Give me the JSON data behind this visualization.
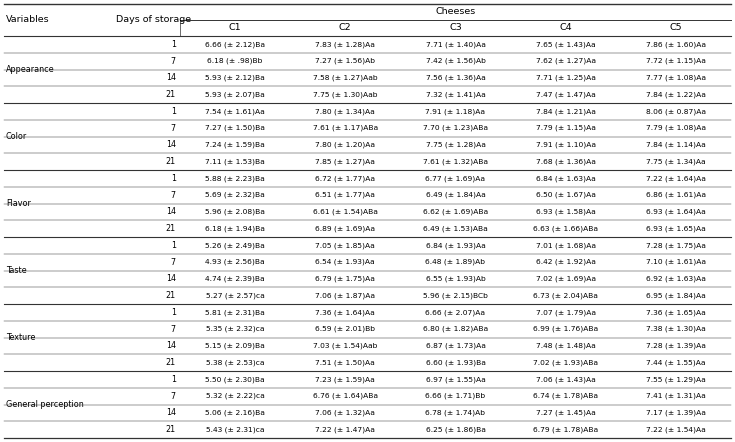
{
  "header_main": "Cheeses",
  "col_headers": [
    "C1",
    "C2",
    "C3",
    "C4",
    "C5"
  ],
  "row_groups": [
    {
      "variable": "Appearance",
      "days": [
        "1",
        "7",
        "14",
        "21"
      ],
      "values": [
        [
          "6.66 (± 2.12)Ba",
          "7.83 (± 1.28)Aa",
          "7.71 (± 1.40)Aa",
          "7.65 (± 1.43)Aa",
          "7.86 (± 1.60)Aa"
        ],
        [
          "6.18 (± .98)Bb",
          "7.27 (± 1.56)Ab",
          "7.42 (± 1.56)Ab",
          "7.62 (± 1.27)Aa",
          "7.72 (± 1.15)Aa"
        ],
        [
          "5.93 (± 2.12)Ba",
          "7.58 (± 1.27)Aab",
          "7.56 (± 1.36)Aa",
          "7.71 (± 1.25)Aa",
          "7.77 (± 1.08)Aa"
        ],
        [
          "5.93 (± 2.07)Ba",
          "7.75 (± 1.30)Aab",
          "7.32 (± 1.41)Aa",
          "7.47 (± 1.47)Aa",
          "7.84 (± 1.22)Aa"
        ]
      ]
    },
    {
      "variable": "Color",
      "days": [
        "1",
        "7",
        "14",
        "21"
      ],
      "values": [
        [
          "7.54 (± 1.61)Aa",
          "7.80 (± 1.34)Aa",
          "7.91 (± 1.18)Aa",
          "7.84 (± 1.21)Aa",
          "8.06 (± 0.87)Aa"
        ],
        [
          "7.27 (± 1.50)Ba",
          "7.61 (± 1.17)ABa",
          "7.70 (± 1.23)ABa",
          "7.79 (± 1.15)Aa",
          "7.79 (± 1.08)Aa"
        ],
        [
          "7.24 (± 1.59)Ba",
          "7.80 (± 1.20)Aa",
          "7.75 (± 1.28)Aa",
          "7.91 (± 1.10)Aa",
          "7.84 (± 1.14)Aa"
        ],
        [
          "7.11 (± 1.53)Ba",
          "7.85 (± 1.27)Aa",
          "7.61 (± 1.32)ABa",
          "7.68 (± 1.36)Aa",
          "7.75 (± 1.34)Aa"
        ]
      ]
    },
    {
      "variable": "Flavor",
      "days": [
        "1",
        "7",
        "14",
        "21"
      ],
      "values": [
        [
          "5.88 (± 2.23)Ba",
          "6.72 (± 1.77)Aa",
          "6.77 (± 1.69)Aa",
          "6.84 (± 1.63)Aa",
          "7.22 (± 1.64)Aa"
        ],
        [
          "5.69 (± 2.32)Ba",
          "6.51 (± 1.77)Aa",
          "6.49 (± 1.84)Aa",
          "6.50 (± 1.67)Aa",
          "6.86 (± 1.61)Aa"
        ],
        [
          "5.96 (± 2.08)Ba",
          "6.61 (± 1.54)ABa",
          "6.62 (± 1.69)ABa",
          "6.93 (± 1.58)Aa",
          "6.93 (± 1.64)Aa"
        ],
        [
          "6.18 (± 1.94)Ba",
          "6.89 (± 1.69)Aa",
          "6.49 (± 1.53)ABa",
          "6.63 (± 1.66)ABa",
          "6.93 (± 1.65)Aa"
        ]
      ]
    },
    {
      "variable": "Taste",
      "days": [
        "1",
        "7",
        "14",
        "21"
      ],
      "values": [
        [
          "5.26 (± 2.49)Ba",
          "7.05 (± 1.85)Aa",
          "6.84 (± 1.93)Aa",
          "7.01 (± 1.68)Aa",
          "7.28 (± 1.75)Aa"
        ],
        [
          "4.93 (± 2.56)Ba",
          "6.54 (± 1.93)Aa",
          "6.48 (± 1.89)Ab",
          "6.42 (± 1.92)Aa",
          "7.10 (± 1.61)Aa"
        ],
        [
          "4.74 (± 2.39)Ba",
          "6.79 (± 1.75)Aa",
          "6.55 (± 1.93)Ab",
          "7.02 (± 1.69)Aa",
          "6.92 (± 1.63)Aa"
        ],
        [
          "5.27 (± 2.57)ca",
          "7.06 (± 1.87)Aa",
          "5.96 (± 2.15)BCb",
          "6.73 (± 2.04)ABa",
          "6.95 (± 1.84)Aa"
        ]
      ]
    },
    {
      "variable": "Texture",
      "days": [
        "1",
        "7",
        "14",
        "21"
      ],
      "values": [
        [
          "5.81 (± 2.31)Ba",
          "7.36 (± 1.64)Aa",
          "6.66 (± 2.07)Aa",
          "7.07 (± 1.79)Aa",
          "7.36 (± 1.65)Aa"
        ],
        [
          "5.35 (± 2.32)ca",
          "6.59 (± 2.01)Bb",
          "6.80 (± 1.82)ABa",
          "6.99 (± 1.76)ABa",
          "7.38 (± 1.30)Aa"
        ],
        [
          "5.15 (± 2.09)Ba",
          "7.03 (± 1.54)Aab",
          "6.87 (± 1.73)Aa",
          "7.48 (± 1.48)Aa",
          "7.28 (± 1.39)Aa"
        ],
        [
          "5.38 (± 2.53)ca",
          "7.51 (± 1.50)Aa",
          "6.60 (± 1.93)Ba",
          "7.02 (± 1.93)ABa",
          "7.44 (± 1.55)Aa"
        ]
      ]
    },
    {
      "variable": "General perception",
      "days": [
        "1",
        "7",
        "14",
        "21"
      ],
      "values": [
        [
          "5.50 (± 2.30)Ba",
          "7.23 (± 1.59)Aa",
          "6.97 (± 1.55)Aa",
          "7.06 (± 1.43)Aa",
          "7.55 (± 1.29)Aa"
        ],
        [
          "5.32 (± 2.22)ca",
          "6.76 (± 1.64)ABa",
          "6.66 (± 1.71)Bb",
          "6.74 (± 1.78)ABa",
          "7.41 (± 1.31)Aa"
        ],
        [
          "5.06 (± 2.16)Ba",
          "7.06 (± 1.32)Aa",
          "6.78 (± 1.74)Ab",
          "7.27 (± 1.45)Aa",
          "7.17 (± 1.39)Aa"
        ],
        [
          "5.43 (± 2.31)ca",
          "7.22 (± 1.47)Aa",
          "6.25 (± 1.86)Ba",
          "6.79 (± 1.78)ABa",
          "7.22 (± 1.54)Aa"
        ]
      ]
    }
  ]
}
